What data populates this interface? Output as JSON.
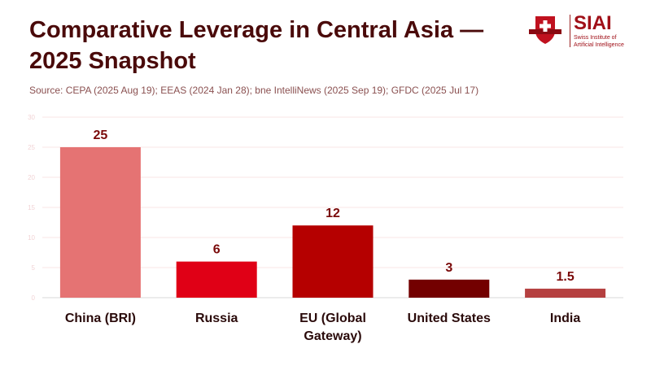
{
  "header": {
    "title": "Comparative Leverage in Central Asia — 2025 Snapshot",
    "source": "Source: CEPA (2025 Aug 19); EEAS (2024 Jan 28); bne IntelliNews (2025 Sep 19); GFDC (2025 Jul 17)"
  },
  "logo": {
    "text": "SIAI",
    "subtitle_1": "Swiss Institute of",
    "subtitle_2": "Artificial Intelligence"
  },
  "chart_data": {
    "type": "bar",
    "title": "Comparative Leverage in Central Asia — 2025 Snapshot",
    "xlabel": "",
    "ylabel": "",
    "categories": [
      "China (BRI)",
      "Russia",
      "EU (Global Gateway)",
      "United States",
      "India"
    ],
    "category_lines": [
      [
        "China (BRI)"
      ],
      [
        "Russia"
      ],
      [
        "EU (Global",
        "Gateway)"
      ],
      [
        "United States"
      ],
      [
        "India"
      ]
    ],
    "values": [
      25,
      6,
      12,
      3,
      1.5
    ],
    "data_labels": [
      "25",
      "6",
      "12",
      "3",
      "1.5"
    ],
    "colors": [
      "#e57373",
      "#e00016",
      "#b50000",
      "#730000",
      "#b54040"
    ],
    "ylim": [
      0,
      30
    ],
    "yticks": [
      0,
      5,
      10,
      15,
      20,
      25,
      30
    ],
    "grid": true,
    "legend": "none"
  }
}
